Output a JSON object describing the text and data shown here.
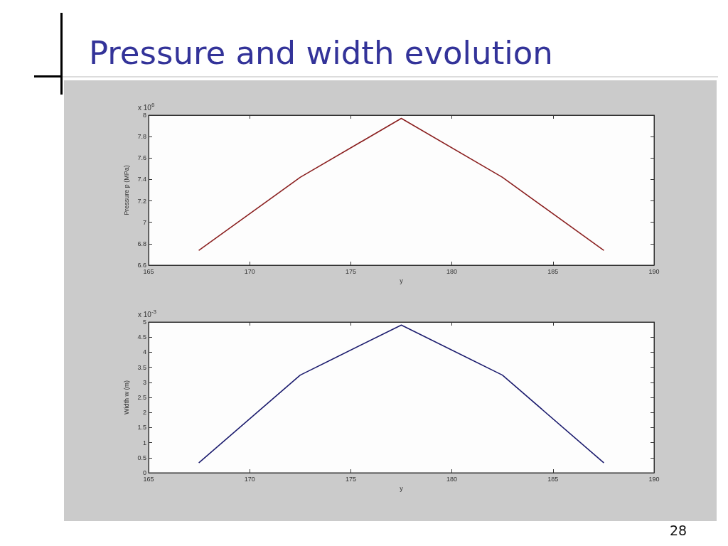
{
  "chart_data": [
    {
      "type": "line",
      "title": "Pressure and width evolution",
      "x": [
        167.5,
        172.5,
        177.5,
        182.5,
        187.5
      ],
      "values": [
        6.74,
        7.42,
        7.97,
        7.42,
        6.74
      ],
      "color": "#8b2020",
      "xlabel": "y",
      "ylabel": "Pressure p (MPa)",
      "xlim": [
        165,
        190
      ],
      "xticks": [
        165,
        170,
        175,
        180,
        185,
        190
      ],
      "ylim": [
        6.6,
        8
      ],
      "yticks": [
        6.6,
        6.8,
        7,
        7.2,
        7.4,
        7.6,
        7.8,
        8
      ],
      "annotations": [
        "x 10$^{6}$"
      ],
      "marker": "none",
      "line_style": "solid"
    },
    {
      "type": "line",
      "x": [
        167.5,
        172.5,
        177.5,
        182.5,
        187.5
      ],
      "values": [
        0.34,
        3.24,
        4.9,
        3.24,
        0.34
      ],
      "color": "#1c1c6e",
      "xlabel": "y",
      "ylabel": "Width w (m)",
      "xlim": [
        165,
        190
      ],
      "xticks": [
        165,
        170,
        175,
        180,
        185,
        190
      ],
      "ylim": [
        0,
        5
      ],
      "yticks": [
        0,
        0.5,
        1,
        1.5,
        2,
        2.5,
        3,
        3.5,
        4,
        4.5,
        5
      ],
      "annotations": [
        "x 10$^{-3}$",
        "28"
      ],
      "marker": "none",
      "line_style": "solid"
    }
  ]
}
